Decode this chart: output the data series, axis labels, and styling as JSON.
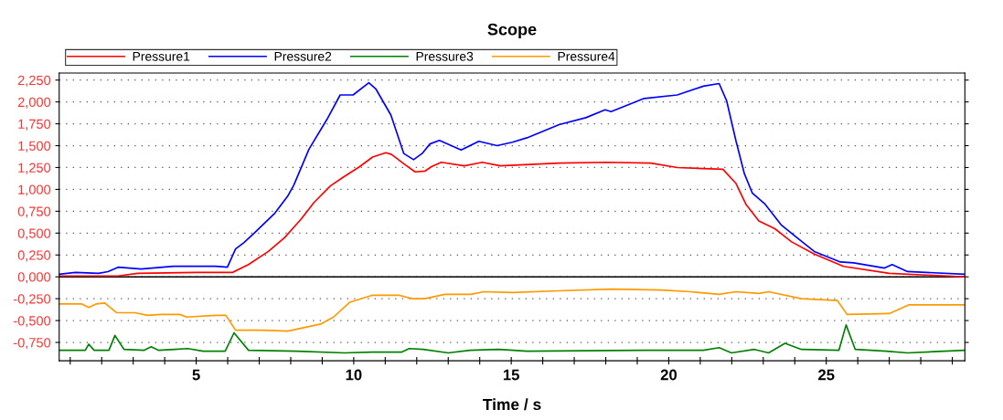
{
  "chart_data": {
    "type": "line",
    "title": "Scope",
    "xlabel": "Time / s",
    "xlim": [
      0.65,
      29.4
    ],
    "ylim": [
      -0.96,
      2.33
    ],
    "xticks": [
      {
        "value": 1,
        "label": null
      },
      {
        "value": 2,
        "label": null
      },
      {
        "value": 3,
        "label": null
      },
      {
        "value": 4,
        "label": null
      },
      5,
      {
        "value": 6,
        "label": null
      },
      {
        "value": 7,
        "label": null
      },
      {
        "value": 8,
        "label": null
      },
      {
        "value": 9,
        "label": null
      },
      10,
      {
        "value": 11,
        "label": null
      },
      {
        "value": 12,
        "label": null
      },
      {
        "value": 13,
        "label": null
      },
      {
        "value": 14,
        "label": null
      },
      15,
      {
        "value": 16,
        "label": null
      },
      {
        "value": 17,
        "label": null
      },
      {
        "value": 18,
        "label": null
      },
      {
        "value": 19,
        "label": null
      },
      20,
      {
        "value": 21,
        "label": null
      },
      {
        "value": 22,
        "label": null
      },
      {
        "value": 23,
        "label": null
      },
      {
        "value": 24,
        "label": null
      },
      25,
      {
        "value": 26,
        "label": null
      },
      {
        "value": 27,
        "label": null
      },
      {
        "value": 28,
        "label": null
      },
      {
        "value": 29,
        "label": null
      }
    ],
    "yticks": [
      {
        "value": -0.75,
        "label": "-0,750"
      },
      {
        "value": -0.5,
        "label": "-0,500"
      },
      {
        "value": -0.25,
        "label": "-0,250"
      },
      {
        "value": 0,
        "label": "0,000"
      },
      {
        "value": 0.25,
        "label": "0,250"
      },
      {
        "value": 0.5,
        "label": "0,500"
      },
      {
        "value": 0.75,
        "label": "0,750"
      },
      {
        "value": 1,
        "label": "1,000"
      },
      {
        "value": 1.25,
        "label": "1,250"
      },
      {
        "value": 1.5,
        "label": "1,500"
      },
      {
        "value": 1.75,
        "label": "1,750"
      },
      {
        "value": 2,
        "label": "2,000"
      },
      {
        "value": 2.25,
        "label": "2,250"
      }
    ],
    "grid": "y",
    "legend": "top left",
    "marker": "none",
    "line_style": "solid",
    "ref_lines": [
      {
        "axis": "y",
        "value": 0,
        "color": "#000000",
        "line_style": "solid"
      }
    ],
    "series": [
      {
        "name": "Pressure1",
        "color": "#ff0000",
        "x": [
          0.65,
          1.17,
          2.52,
          3.14,
          5.0,
          6.15,
          6.66,
          7.29,
          7.81,
          8.33,
          8.74,
          9.26,
          9.67,
          10.19,
          10.6,
          11.02,
          11.2,
          11.64,
          11.95,
          12.27,
          12.47,
          12.78,
          13.51,
          14.08,
          14.65,
          16.52,
          18.03,
          19.43,
          20.27,
          21.72,
          22.13,
          22.45,
          22.86,
          23.37,
          23.9,
          24.62,
          25.55,
          27.0,
          29.38
        ],
        "values": [
          0.01,
          0.01,
          0.01,
          0.04,
          0.05,
          0.05,
          0.14,
          0.29,
          0.45,
          0.66,
          0.85,
          1.04,
          1.14,
          1.26,
          1.37,
          1.42,
          1.4,
          1.28,
          1.2,
          1.21,
          1.26,
          1.31,
          1.27,
          1.31,
          1.27,
          1.3,
          1.31,
          1.3,
          1.25,
          1.23,
          1.07,
          0.83,
          0.64,
          0.55,
          0.4,
          0.26,
          0.12,
          0.04,
          0.0
        ]
      },
      {
        "name": "Pressure2",
        "color": "#0000ff",
        "x": [
          0.65,
          1.17,
          1.9,
          2.2,
          2.52,
          3.25,
          4.28,
          5.0,
          5.62,
          5.99,
          6.25,
          6.51,
          6.87,
          7.5,
          7.9,
          8.1,
          8.58,
          9.15,
          9.57,
          9.98,
          10.48,
          10.7,
          11.18,
          11.59,
          11.9,
          12.17,
          12.42,
          12.72,
          13.41,
          13.97,
          14.55,
          15.04,
          15.5,
          16.52,
          17.37,
          17.98,
          18.17,
          19.22,
          20.27,
          21.1,
          21.6,
          21.84,
          22.13,
          22.4,
          22.65,
          23.06,
          23.58,
          24.1,
          24.62,
          25.45,
          25.87,
          26.85,
          27.09,
          27.58,
          29.38
        ],
        "values": [
          0.03,
          0.05,
          0.04,
          0.06,
          0.11,
          0.09,
          0.12,
          0.12,
          0.12,
          0.11,
          0.32,
          0.39,
          0.51,
          0.73,
          0.92,
          1.05,
          1.46,
          1.8,
          2.08,
          2.08,
          2.22,
          2.15,
          1.85,
          1.41,
          1.34,
          1.41,
          1.52,
          1.56,
          1.45,
          1.55,
          1.5,
          1.54,
          1.59,
          1.74,
          1.82,
          1.91,
          1.89,
          2.04,
          2.08,
          2.18,
          2.21,
          2.01,
          1.56,
          1.18,
          0.96,
          0.83,
          0.59,
          0.44,
          0.29,
          0.17,
          0.16,
          0.1,
          0.14,
          0.06,
          0.03
        ]
      },
      {
        "name": "Pressure3",
        "color": "#008000",
        "x": [
          0.65,
          1.48,
          1.59,
          1.76,
          2.23,
          2.42,
          2.71,
          3.34,
          3.57,
          3.81,
          4.33,
          4.73,
          5.22,
          5.92,
          6.2,
          6.66,
          8.18,
          9.7,
          10.6,
          11.53,
          11.76,
          12.2,
          13.0,
          13.7,
          14.6,
          15.5,
          19.22,
          21.1,
          21.6,
          21.99,
          22.72,
          23.17,
          23.69,
          24.21,
          25.4,
          25.63,
          25.92,
          26.9,
          27.58,
          29.38
        ],
        "values": [
          -0.84,
          -0.84,
          -0.77,
          -0.84,
          -0.84,
          -0.67,
          -0.83,
          -0.84,
          -0.8,
          -0.84,
          -0.83,
          -0.82,
          -0.85,
          -0.85,
          -0.64,
          -0.84,
          -0.85,
          -0.87,
          -0.86,
          -0.86,
          -0.82,
          -0.83,
          -0.87,
          -0.84,
          -0.83,
          -0.85,
          -0.84,
          -0.84,
          -0.81,
          -0.87,
          -0.83,
          -0.87,
          -0.76,
          -0.83,
          -0.84,
          -0.55,
          -0.83,
          -0.85,
          -0.87,
          -0.84
        ]
      },
      {
        "name": "Pressure4",
        "color": "#ff9900",
        "x": [
          0.65,
          1.37,
          1.59,
          1.82,
          2.1,
          2.47,
          3.06,
          3.45,
          3.87,
          4.48,
          4.7,
          5.62,
          5.94,
          6.25,
          7.08,
          7.91,
          8.95,
          9.36,
          9.88,
          10.6,
          11.43,
          11.85,
          12.26,
          12.89,
          13.72,
          14.13,
          15.04,
          16.52,
          18.2,
          19.75,
          20.68,
          21.6,
          22.13,
          22.86,
          23.17,
          24.21,
          25.35,
          25.66,
          27.0,
          27.63,
          29.38
        ],
        "values": [
          -0.31,
          -0.31,
          -0.35,
          -0.31,
          -0.3,
          -0.41,
          -0.41,
          -0.44,
          -0.43,
          -0.43,
          -0.46,
          -0.44,
          -0.44,
          -0.61,
          -0.61,
          -0.62,
          -0.54,
          -0.46,
          -0.29,
          -0.21,
          -0.21,
          -0.25,
          -0.25,
          -0.2,
          -0.2,
          -0.17,
          -0.18,
          -0.16,
          -0.14,
          -0.15,
          -0.17,
          -0.2,
          -0.17,
          -0.19,
          -0.17,
          -0.25,
          -0.27,
          -0.43,
          -0.42,
          -0.32,
          -0.32
        ]
      }
    ]
  }
}
